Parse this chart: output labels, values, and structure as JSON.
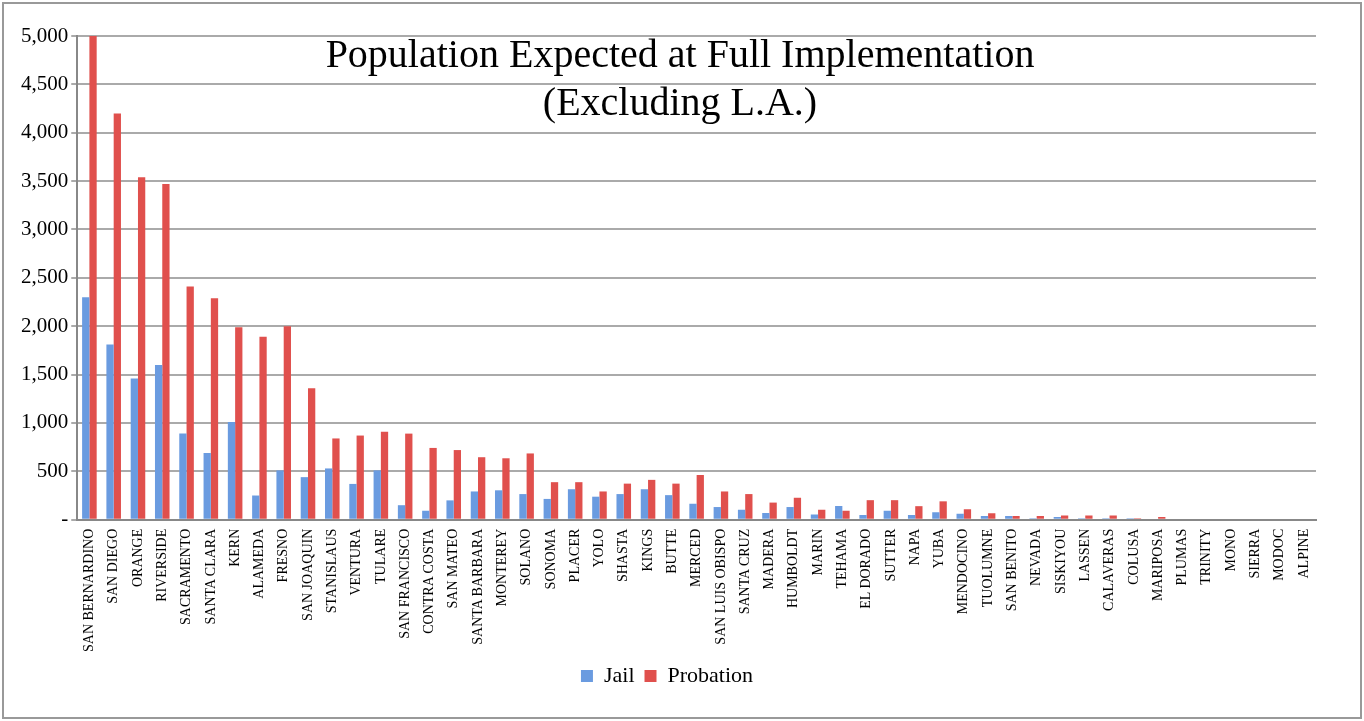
{
  "chart_data": {
    "type": "bar",
    "title": "Population Expected at Full Implementation\n(Excluding L.A.)",
    "categories": [
      "SAN BERNARDINO",
      "SAN DIEGO",
      "ORANGE",
      "RIVERSIDE",
      "SACRAMENTO",
      "SANTA CLARA",
      "KERN",
      "ALAMEDA",
      "FRESNO",
      "SAN JOAQUIN",
      "STANISLAUS",
      "VENTURA",
      "TULARE",
      "SAN FRANCISCO",
      "CONTRA COSTA",
      "SAN MATEO",
      "SANTA BARBARA",
      "MONTEREY",
      "SOLANO",
      "SONOMA",
      "PLACER",
      "YOLO",
      "SHASTA",
      "KINGS",
      "BUTTE",
      "MERCED",
      "SAN LUIS OBISPO",
      "SANTA CRUZ",
      "MADERA",
      "HUMBOLDT",
      "MARIN",
      "TEHAMA",
      "EL DORADO",
      "SUTTER",
      "NAPA",
      "YUBA",
      "MENDOCINO",
      "TUOLUMNE",
      "SAN BENITO",
      "NEVADA",
      "SISKIYOU",
      "LASSEN",
      "CALAVERAS",
      "COLUSA",
      "MARIPOSA",
      "PLUMAS",
      "TRINITY",
      "MONO",
      "SIERRA",
      "MODOC",
      "ALPINE"
    ],
    "series": [
      {
        "name": "Jail",
        "color": "#6a9be0",
        "values": [
          2300,
          1810,
          1460,
          1600,
          890,
          690,
          1010,
          250,
          510,
          440,
          530,
          370,
          510,
          150,
          92,
          200,
          292,
          304,
          265,
          215,
          315,
          238,
          265,
          315,
          254,
          165,
          131,
          104,
          69,
          131,
          54,
          142,
          50,
          93,
          50,
          77,
          62,
          39,
          39,
          15,
          27,
          15,
          15,
          15,
          0,
          0,
          0,
          0,
          0,
          0,
          0
        ]
      },
      {
        "name": "Probation",
        "color": "#e0504d",
        "values": [
          5000,
          4200,
          3540,
          3470,
          2410,
          2290,
          1990,
          1890,
          2000,
          1360,
          840,
          870,
          910,
          890,
          742,
          720,
          646,
          635,
          685,
          388,
          388,
          292,
          373,
          412,
          373,
          462,
          292,
          265,
          177,
          227,
          104,
          92,
          202,
          202,
          140,
          190,
          109,
          66,
          39,
          39,
          43,
          43,
          43,
          15,
          27,
          0,
          0,
          0,
          0,
          0,
          0
        ]
      }
    ],
    "ylim": [
      0,
      5000
    ],
    "yticks": [
      {
        "value": 0,
        "label": "-"
      },
      {
        "value": 500,
        "label": "500"
      },
      {
        "value": 1000,
        "label": "1,000"
      },
      {
        "value": 1500,
        "label": "1,500"
      },
      {
        "value": 2000,
        "label": "2,000"
      },
      {
        "value": 2500,
        "label": "2,500"
      },
      {
        "value": 3000,
        "label": "3,000"
      },
      {
        "value": 3500,
        "label": "3,500"
      },
      {
        "value": 4000,
        "label": "4,000"
      },
      {
        "value": 4500,
        "label": "4,500"
      },
      {
        "value": 5000,
        "label": "5,000"
      }
    ],
    "grid": "y",
    "legend": "bottom"
  }
}
